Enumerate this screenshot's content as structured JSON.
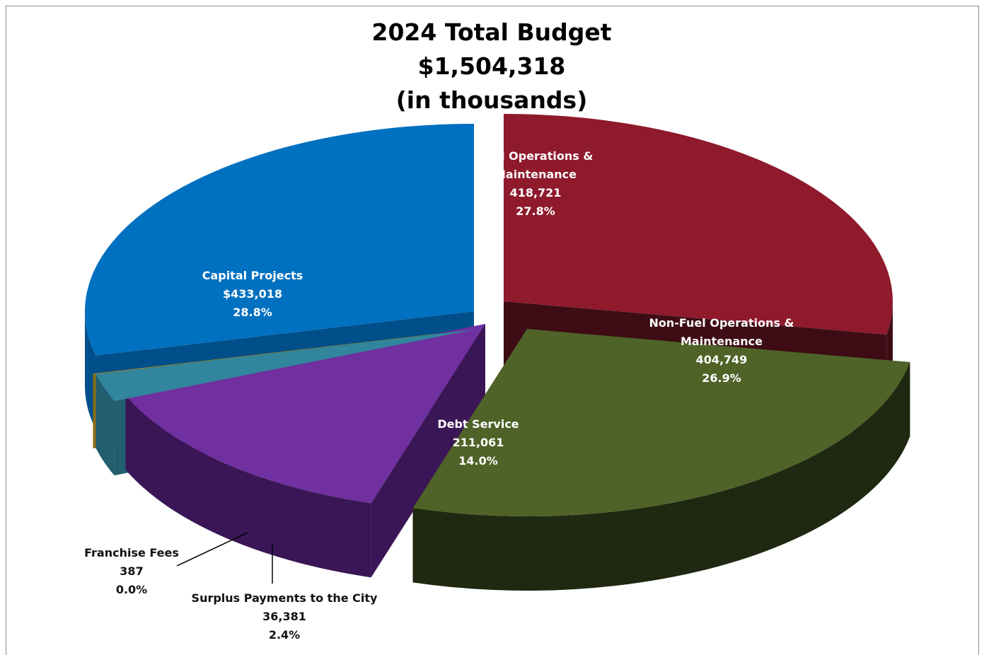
{
  "chart_data": {
    "type": "pie",
    "title": "2024 Total Budget",
    "subtitle_lines": [
      "$1,504,318",
      "(in thousands)"
    ],
    "slices": [
      {
        "label_lines": [
          "Fuel Operations &",
          "Maintenance"
        ],
        "value": 418721,
        "value_label": "418,721",
        "percent_label": "27.8%",
        "color": "#8e1a2c",
        "side_color": "#3e0c15"
      },
      {
        "label_lines": [
          "Non-Fuel Operations &",
          "Maintenance"
        ],
        "value": 404749,
        "value_label": "404,749",
        "percent_label": "26.9%",
        "color": "#4f6228",
        "side_color": "#1f2810"
      },
      {
        "label_lines": [
          "Debt Service"
        ],
        "value": 211061,
        "value_label": "211,061",
        "percent_label": "14.0%",
        "color": "#7030a0",
        "side_color": "#3a1656"
      },
      {
        "label_lines": [
          "Surplus Payments to the City"
        ],
        "value": 36381,
        "value_label": "36,381",
        "percent_label": "2.4%",
        "color": "#31859c",
        "side_color": "#215e6e"
      },
      {
        "label_lines": [
          "Franchise Fees"
        ],
        "value": 387,
        "value_label": "387",
        "percent_label": "0.0%",
        "color": "#c9a227",
        "side_color": "#8a6e16"
      },
      {
        "label_lines": [
          "Capital Projects"
        ],
        "value": 433018,
        "value_label": "$433,018",
        "percent_label": "28.8%",
        "color": "#0070c0",
        "side_color": "#004f8a"
      }
    ]
  }
}
